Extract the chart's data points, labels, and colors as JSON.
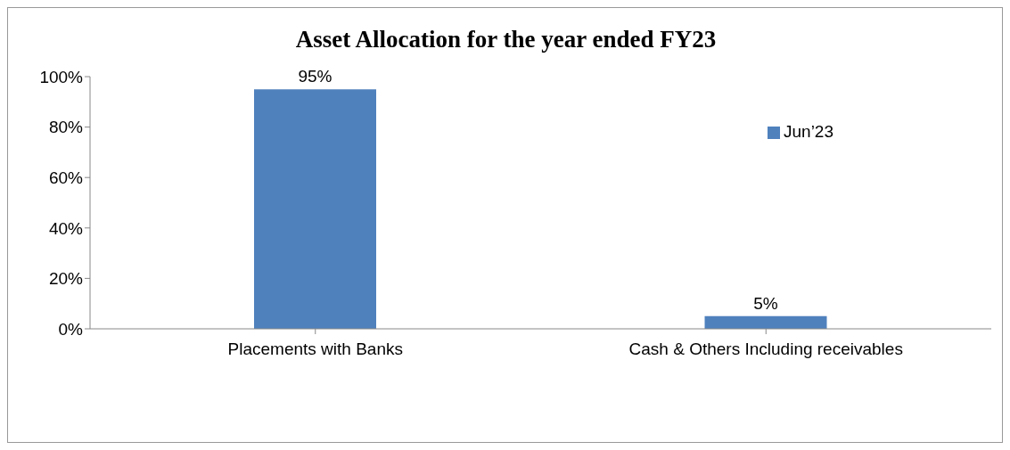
{
  "chart_data": {
    "type": "bar",
    "title": "Asset Allocation for the year ended FY23",
    "categories": [
      "Placements with Banks",
      "Cash & Others Including receivables"
    ],
    "series": [
      {
        "name": "Jun’23",
        "color": "#4f81bd",
        "values": [
          95,
          5
        ],
        "value_labels": [
          "95%",
          "5%"
        ]
      }
    ],
    "ylim": [
      0,
      100
    ],
    "yticks": [
      {
        "value": 0,
        "label": "0%"
      },
      {
        "value": 20,
        "label": "20%"
      },
      {
        "value": 40,
        "label": "40%"
      },
      {
        "value": 60,
        "label": "60%"
      },
      {
        "value": 80,
        "label": "80%"
      },
      {
        "value": 100,
        "label": "100%"
      }
    ],
    "grid": false,
    "legend": "top right"
  }
}
